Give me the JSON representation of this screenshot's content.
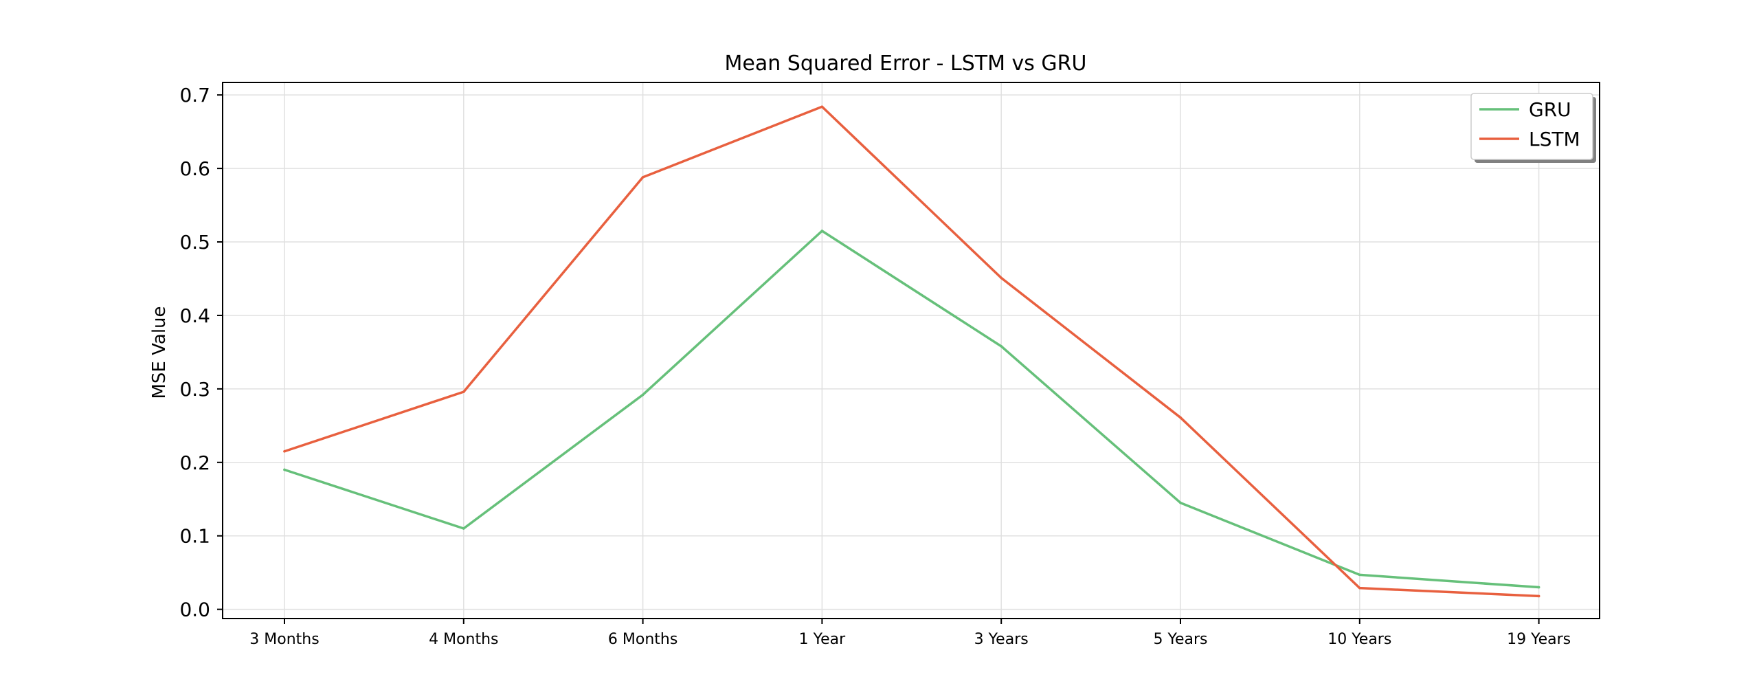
{
  "chart_data": {
    "type": "line",
    "title": "Mean Squared Error - LSTM vs GRU",
    "xlabel": "",
    "ylabel": "MSE Value",
    "categories": [
      "3 Months",
      "4 Months",
      "6 Months",
      "1 Year",
      "3 Years",
      "5 Years",
      "10 Years",
      "19 Years"
    ],
    "ylim": [
      -0.0125,
      0.717
    ],
    "yticks": [
      0.0,
      0.1,
      0.2,
      0.3,
      0.4,
      0.5,
      0.6,
      0.7
    ],
    "ytick_labels": [
      "0.0",
      "0.1",
      "0.2",
      "0.3",
      "0.4",
      "0.5",
      "0.6",
      "0.7"
    ],
    "grid": true,
    "legend_position": "top-right",
    "series": [
      {
        "name": "GRU",
        "color": "#66c07a",
        "values": [
          0.19,
          0.11,
          0.292,
          0.515,
          0.358,
          0.145,
          0.047,
          0.03
        ]
      },
      {
        "name": "LSTM",
        "color": "#e8603f",
        "values": [
          0.215,
          0.296,
          0.588,
          0.684,
          0.451,
          0.261,
          0.029,
          0.018
        ]
      }
    ]
  }
}
